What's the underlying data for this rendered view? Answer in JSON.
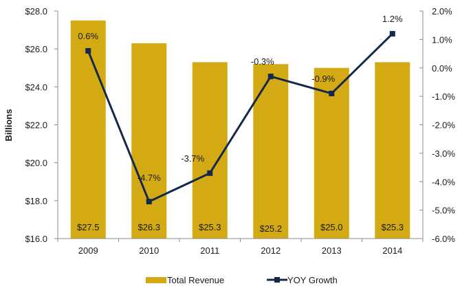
{
  "chart_data": {
    "type": "bar",
    "combo": "bar-line-dual-axis",
    "title": "",
    "xlabel": "",
    "ylabel": "Billions",
    "y2label": "",
    "categories": [
      "2009",
      "2010",
      "2011",
      "2012",
      "2013",
      "2014"
    ],
    "ylim": [
      16.0,
      28.0
    ],
    "y2lim": [
      -6.0,
      2.0
    ],
    "y_ticks": [
      "$16.0",
      "$18.0",
      "$20.0",
      "$22.0",
      "$24.0",
      "$26.0",
      "$28.0"
    ],
    "y_tick_values": [
      16,
      18,
      20,
      22,
      24,
      26,
      28
    ],
    "y2_ticks": [
      "-6.0%",
      "-5.0%",
      "-4.0%",
      "-3.0%",
      "-2.0%",
      "-1.0%",
      "0.0%",
      "1.0%",
      "2.0%"
    ],
    "y2_tick_values": [
      -6,
      -5,
      -4,
      -3,
      -2,
      -1,
      0,
      1,
      2
    ],
    "grid": false,
    "legend_position": "bottom",
    "series": [
      {
        "name": "Total Revenue",
        "type": "bar",
        "axis": "left",
        "color": "#D4AA14",
        "values": [
          27.5,
          26.3,
          25.3,
          25.2,
          25.0,
          25.3
        ],
        "labels": [
          "$27.5",
          "$26.3",
          "$25.3",
          "$25.2",
          "$25.0",
          "$25.3"
        ]
      },
      {
        "name": "YOY Growth",
        "type": "line",
        "axis": "right",
        "color": "#14284B",
        "marker": "square",
        "values": [
          0.6,
          -4.7,
          -3.7,
          -0.3,
          -0.9,
          1.2
        ],
        "labels": [
          "0.6%",
          "-4.7%",
          "-3.7%",
          "-0.3%",
          "-0.9%",
          "1.2%"
        ]
      }
    ]
  },
  "legend": {
    "items": [
      {
        "label": "Total Revenue",
        "icon": "bar-swatch"
      },
      {
        "label": "YOY Growth",
        "icon": "line-square-marker"
      }
    ]
  }
}
